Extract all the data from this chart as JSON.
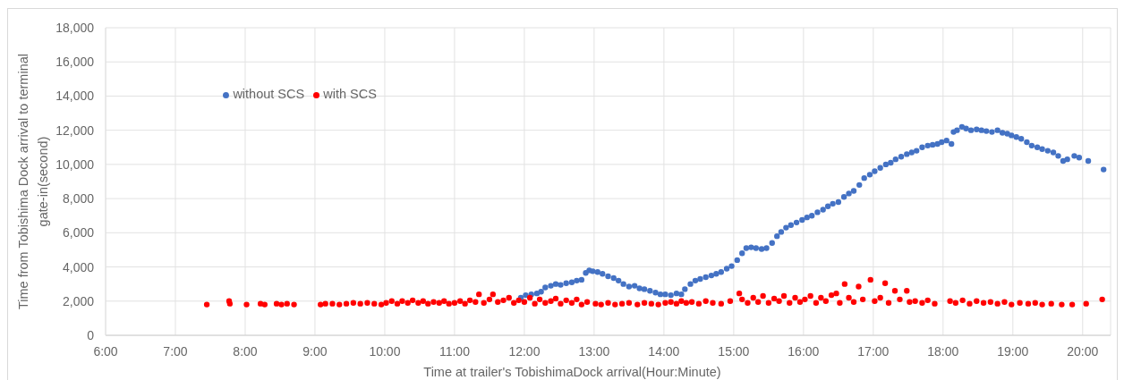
{
  "chart_data": {
    "type": "scatter",
    "xlabel": "Time at trailer's TobishimaDock arrival(Hour:Minute)",
    "ylabel": "Time from Tobishima Dock arrival to terminal gate-in(second)",
    "xlim": [
      6,
      20.4
    ],
    "xticks": [
      {
        "value": 6,
        "label": "6:00"
      },
      {
        "value": 7,
        "label": "7:00"
      },
      {
        "value": 8,
        "label": "8:00"
      },
      {
        "value": 9,
        "label": "9:00"
      },
      {
        "value": 10,
        "label": "10:00"
      },
      {
        "value": 11,
        "label": "11:00"
      },
      {
        "value": 12,
        "label": "12:00"
      },
      {
        "value": 13,
        "label": "13:00"
      },
      {
        "value": 14,
        "label": "14:00"
      },
      {
        "value": 15,
        "label": "15:00"
      },
      {
        "value": 16,
        "label": "16:00"
      },
      {
        "value": 17,
        "label": "17:00"
      },
      {
        "value": 18,
        "label": "18:00"
      },
      {
        "value": 19,
        "label": "19:00"
      },
      {
        "value": 20,
        "label": "20:00"
      }
    ],
    "ylim": [
      0,
      18000
    ],
    "yticks": [
      0,
      {
        "value": 2000,
        "label": "2,000"
      },
      {
        "value": 4000,
        "label": "4,000"
      },
      {
        "value": 6000,
        "label": "6,000"
      },
      {
        "value": 8000,
        "label": "8,000"
      },
      {
        "value": 10000,
        "label": "10,000"
      },
      {
        "value": 12000,
        "label": "12,000"
      },
      {
        "value": 14000,
        "label": "14,000"
      },
      {
        "value": 16000,
        "label": "16,000"
      },
      {
        "value": 18000,
        "label": "18,000"
      }
    ],
    "grid": true,
    "legend": "top left",
    "marker": "circle",
    "series": [
      {
        "name": "without SCS",
        "color": "#4472c4",
        "x": [
          11.95,
          12.02,
          12.1,
          12.18,
          12.24,
          12.3,
          12.38,
          12.45,
          12.52,
          12.6,
          12.68,
          12.75,
          12.82,
          12.88,
          12.93,
          12.98,
          13.05,
          13.12,
          13.2,
          13.28,
          13.35,
          13.42,
          13.5,
          13.58,
          13.65,
          13.72,
          13.8,
          13.88,
          13.95,
          14.02,
          14.1,
          14.18,
          14.25,
          14.3,
          14.38,
          14.45,
          14.52,
          14.6,
          14.68,
          14.75,
          14.82,
          14.9,
          14.97,
          15.05,
          15.12,
          15.18,
          15.25,
          15.32,
          15.4,
          15.47,
          15.55,
          15.62,
          15.68,
          15.75,
          15.82,
          15.9,
          15.98,
          16.05,
          16.12,
          16.2,
          16.28,
          16.35,
          16.42,
          16.5,
          16.58,
          16.65,
          16.72,
          16.8,
          16.87,
          16.95,
          17.02,
          17.1,
          17.18,
          17.25,
          17.32,
          17.4,
          17.48,
          17.55,
          17.62,
          17.7,
          17.78,
          17.85,
          17.92,
          17.98,
          18.05,
          18.12,
          18.15,
          18.2,
          18.27,
          18.33,
          18.4,
          18.48,
          18.55,
          18.62,
          18.7,
          18.78,
          18.85,
          18.92,
          18.98,
          19.05,
          19.12,
          19.2,
          19.27,
          19.35,
          19.42,
          19.5,
          19.58,
          19.65,
          19.72,
          19.78,
          19.88,
          19.95,
          20.08,
          20.3
        ],
        "values": [
          2200,
          2350,
          2400,
          2450,
          2550,
          2800,
          2900,
          3000,
          2950,
          3050,
          3100,
          3200,
          3250,
          3650,
          3800,
          3750,
          3700,
          3600,
          3450,
          3350,
          3200,
          3000,
          2850,
          2900,
          2750,
          2700,
          2600,
          2500,
          2400,
          2400,
          2350,
          2450,
          2400,
          2700,
          3000,
          3200,
          3300,
          3400,
          3500,
          3600,
          3700,
          3900,
          4050,
          4400,
          4800,
          5100,
          5150,
          5100,
          5050,
          5100,
          5400,
          5800,
          6050,
          6300,
          6450,
          6600,
          6750,
          6900,
          7000,
          7200,
          7350,
          7550,
          7700,
          7800,
          8100,
          8300,
          8450,
          8800,
          9200,
          9400,
          9600,
          9800,
          10000,
          10100,
          10300,
          10450,
          10600,
          10700,
          10800,
          11000,
          11100,
          11150,
          11200,
          11300,
          11400,
          11200,
          11900,
          12000,
          12200,
          12100,
          12000,
          12050,
          12000,
          11950,
          11900,
          12000,
          11850,
          11800,
          11700,
          11600,
          11500,
          11300,
          11100,
          11000,
          10900,
          10800,
          10700,
          10500,
          10200,
          10300,
          10500,
          10400,
          10200,
          9700
        ]
      },
      {
        "name": "with SCS",
        "color": "#ff0000",
        "x": [
          7.45,
          7.77,
          7.78,
          8.02,
          8.22,
          8.28,
          8.45,
          8.52,
          8.6,
          8.7,
          9.08,
          9.15,
          9.25,
          9.35,
          9.45,
          9.55,
          9.65,
          9.75,
          9.85,
          9.95,
          10.02,
          10.1,
          10.18,
          10.25,
          10.33,
          10.4,
          10.48,
          10.55,
          10.62,
          10.7,
          10.78,
          10.85,
          10.92,
          11.0,
          11.08,
          11.15,
          11.22,
          11.3,
          11.35,
          11.42,
          11.5,
          11.55,
          11.62,
          11.7,
          11.78,
          11.85,
          11.92,
          12.0,
          12.08,
          12.15,
          12.22,
          12.3,
          12.38,
          12.45,
          12.52,
          12.6,
          12.68,
          12.75,
          12.82,
          12.9,
          13.02,
          13.1,
          13.2,
          13.3,
          13.4,
          13.5,
          13.62,
          13.72,
          13.82,
          13.92,
          14.02,
          14.1,
          14.18,
          14.25,
          14.32,
          14.4,
          14.5,
          14.6,
          14.7,
          14.82,
          14.95,
          15.08,
          15.12,
          15.2,
          15.28,
          15.35,
          15.42,
          15.5,
          15.58,
          15.65,
          15.72,
          15.8,
          15.88,
          15.95,
          16.02,
          16.1,
          16.18,
          16.25,
          16.32,
          16.4,
          16.47,
          16.52,
          16.59,
          16.65,
          16.72,
          16.79,
          16.85,
          16.96,
          17.02,
          17.1,
          17.17,
          17.22,
          17.31,
          17.38,
          17.48,
          17.52,
          17.6,
          17.7,
          17.78,
          17.88,
          18.1,
          18.18,
          18.28,
          18.38,
          18.48,
          18.58,
          18.68,
          18.78,
          18.88,
          18.98,
          19.1,
          19.22,
          19.32,
          19.42,
          19.55,
          19.7,
          19.85,
          20.05,
          20.28
        ],
        "values": [
          1800,
          2000,
          1850,
          1800,
          1850,
          1800,
          1850,
          1800,
          1850,
          1800,
          1800,
          1850,
          1850,
          1800,
          1850,
          1900,
          1850,
          1900,
          1850,
          1800,
          1900,
          2000,
          1850,
          2000,
          1900,
          2050,
          1900,
          2000,
          1850,
          1950,
          1900,
          2000,
          1850,
          1900,
          2000,
          1850,
          2050,
          1950,
          2400,
          1900,
          2100,
          2400,
          1950,
          2050,
          2200,
          1900,
          2050,
          1950,
          2200,
          1850,
          2100,
          1900,
          2000,
          2150,
          1850,
          2050,
          1900,
          2100,
          1800,
          1950,
          1850,
          1800,
          1900,
          1800,
          1850,
          1900,
          1800,
          1900,
          1850,
          1800,
          1900,
          1950,
          1850,
          2000,
          1900,
          1950,
          1850,
          2000,
          1900,
          1850,
          2000,
          2450,
          2100,
          1900,
          2200,
          1950,
          2300,
          1900,
          2150,
          2000,
          2300,
          1900,
          2200,
          1950,
          2100,
          2300,
          1900,
          2200,
          2000,
          2350,
          2450,
          1900,
          3000,
          2200,
          1950,
          2850,
          2100,
          3250,
          2000,
          2200,
          3050,
          1900,
          2600,
          2100,
          2600,
          1950,
          2000,
          1900,
          2050,
          1850,
          2000,
          1900,
          2050,
          1850,
          2000,
          1900,
          1950,
          1850,
          1950,
          1800,
          1900,
          1850,
          1900,
          1800,
          1850,
          1800,
          1800,
          1850,
          2100
        ]
      }
    ]
  }
}
